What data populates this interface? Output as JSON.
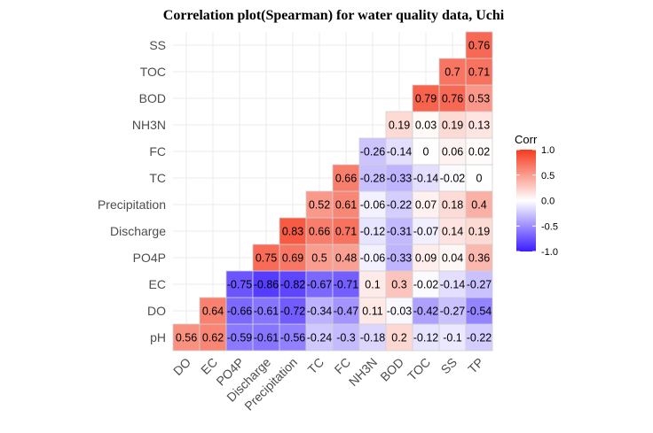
{
  "chart_data": {
    "type": "heatmap",
    "title": "Correlation plot(Spearman) for water quality data, Uchi",
    "x_variables": [
      "DO",
      "EC",
      "PO4P",
      "Discharge",
      "Precipitation",
      "TC",
      "FC",
      "NH3N",
      "BOD",
      "TOC",
      "SS",
      "TP"
    ],
    "y_variables": [
      "pH",
      "DO",
      "EC",
      "PO4P",
      "Discharge",
      "Precipitation",
      "TC",
      "FC",
      "NH3N",
      "BOD",
      "TOC",
      "SS"
    ],
    "cells": [
      {
        "x": "DO",
        "y": "pH",
        "value": 0.56,
        "label": "0.56"
      },
      {
        "x": "EC",
        "y": "pH",
        "value": 0.62,
        "label": "0.62"
      },
      {
        "x": "PO4P",
        "y": "pH",
        "value": -0.59,
        "label": "-0.59"
      },
      {
        "x": "Discharge",
        "y": "pH",
        "value": -0.61,
        "label": "-0.61"
      },
      {
        "x": "Precipitation",
        "y": "pH",
        "value": -0.56,
        "label": "-0.56"
      },
      {
        "x": "TC",
        "y": "pH",
        "value": -0.24,
        "label": "-0.24"
      },
      {
        "x": "FC",
        "y": "pH",
        "value": -0.3,
        "label": "-0.3"
      },
      {
        "x": "NH3N",
        "y": "pH",
        "value": -0.18,
        "label": "-0.18"
      },
      {
        "x": "BOD",
        "y": "pH",
        "value": 0.2,
        "label": "0.2"
      },
      {
        "x": "TOC",
        "y": "pH",
        "value": -0.12,
        "label": "-0.12"
      },
      {
        "x": "SS",
        "y": "pH",
        "value": -0.1,
        "label": "-0.1"
      },
      {
        "x": "TP",
        "y": "pH",
        "value": -0.22,
        "label": "-0.22"
      },
      {
        "x": "EC",
        "y": "DO",
        "value": 0.64,
        "label": "0.64"
      },
      {
        "x": "PO4P",
        "y": "DO",
        "value": -0.66,
        "label": "-0.66"
      },
      {
        "x": "Discharge",
        "y": "DO",
        "value": -0.61,
        "label": "-0.61"
      },
      {
        "x": "Precipitation",
        "y": "DO",
        "value": -0.72,
        "label": "-0.72"
      },
      {
        "x": "TC",
        "y": "DO",
        "value": -0.34,
        "label": "-0.34"
      },
      {
        "x": "FC",
        "y": "DO",
        "value": -0.47,
        "label": "-0.47"
      },
      {
        "x": "NH3N",
        "y": "DO",
        "value": 0.11,
        "label": "0.11"
      },
      {
        "x": "BOD",
        "y": "DO",
        "value": -0.03,
        "label": "-0.03"
      },
      {
        "x": "TOC",
        "y": "DO",
        "value": -0.42,
        "label": "-0.42"
      },
      {
        "x": "SS",
        "y": "DO",
        "value": -0.27,
        "label": "-0.27"
      },
      {
        "x": "TP",
        "y": "DO",
        "value": -0.54,
        "label": "-0.54"
      },
      {
        "x": "PO4P",
        "y": "EC",
        "value": -0.75,
        "label": "-0.75"
      },
      {
        "x": "Discharge",
        "y": "EC",
        "value": -0.86,
        "label": "-0.86"
      },
      {
        "x": "Precipitation",
        "y": "EC",
        "value": -0.82,
        "label": "-0.82"
      },
      {
        "x": "TC",
        "y": "EC",
        "value": -0.67,
        "label": "-0.67"
      },
      {
        "x": "FC",
        "y": "EC",
        "value": -0.71,
        "label": "-0.71"
      },
      {
        "x": "NH3N",
        "y": "EC",
        "value": 0.1,
        "label": "0.1"
      },
      {
        "x": "BOD",
        "y": "EC",
        "value": 0.3,
        "label": "0.3"
      },
      {
        "x": "TOC",
        "y": "EC",
        "value": -0.02,
        "label": "-0.02"
      },
      {
        "x": "SS",
        "y": "EC",
        "value": -0.14,
        "label": "-0.14"
      },
      {
        "x": "TP",
        "y": "EC",
        "value": -0.27,
        "label": "-0.27"
      },
      {
        "x": "Discharge",
        "y": "PO4P",
        "value": 0.75,
        "label": "0.75"
      },
      {
        "x": "Precipitation",
        "y": "PO4P",
        "value": 0.69,
        "label": "0.69"
      },
      {
        "x": "TC",
        "y": "PO4P",
        "value": 0.5,
        "label": "0.5"
      },
      {
        "x": "FC",
        "y": "PO4P",
        "value": 0.48,
        "label": "0.48"
      },
      {
        "x": "NH3N",
        "y": "PO4P",
        "value": -0.06,
        "label": "-0.06"
      },
      {
        "x": "BOD",
        "y": "PO4P",
        "value": -0.33,
        "label": "-0.33"
      },
      {
        "x": "TOC",
        "y": "PO4P",
        "value": 0.09,
        "label": "0.09"
      },
      {
        "x": "SS",
        "y": "PO4P",
        "value": 0.04,
        "label": "0.04"
      },
      {
        "x": "TP",
        "y": "PO4P",
        "value": 0.36,
        "label": "0.36"
      },
      {
        "x": "Precipitation",
        "y": "Discharge",
        "value": 0.83,
        "label": "0.83"
      },
      {
        "x": "TC",
        "y": "Discharge",
        "value": 0.66,
        "label": "0.66"
      },
      {
        "x": "FC",
        "y": "Discharge",
        "value": 0.71,
        "label": "0.71"
      },
      {
        "x": "NH3N",
        "y": "Discharge",
        "value": -0.12,
        "label": "-0.12"
      },
      {
        "x": "BOD",
        "y": "Discharge",
        "value": -0.31,
        "label": "-0.31"
      },
      {
        "x": "TOC",
        "y": "Discharge",
        "value": -0.07,
        "label": "-0.07"
      },
      {
        "x": "SS",
        "y": "Discharge",
        "value": 0.14,
        "label": "0.14"
      },
      {
        "x": "TP",
        "y": "Discharge",
        "value": 0.19,
        "label": "0.19"
      },
      {
        "x": "TC",
        "y": "Precipitation",
        "value": 0.52,
        "label": "0.52"
      },
      {
        "x": "FC",
        "y": "Precipitation",
        "value": 0.61,
        "label": "0.61"
      },
      {
        "x": "NH3N",
        "y": "Precipitation",
        "value": -0.06,
        "label": "-0.06"
      },
      {
        "x": "BOD",
        "y": "Precipitation",
        "value": -0.22,
        "label": "-0.22"
      },
      {
        "x": "TOC",
        "y": "Precipitation",
        "value": 0.07,
        "label": "0.07"
      },
      {
        "x": "SS",
        "y": "Precipitation",
        "value": 0.18,
        "label": "0.18"
      },
      {
        "x": "TP",
        "y": "Precipitation",
        "value": 0.4,
        "label": "0.4"
      },
      {
        "x": "FC",
        "y": "TC",
        "value": 0.66,
        "label": "0.66"
      },
      {
        "x": "NH3N",
        "y": "TC",
        "value": -0.28,
        "label": "-0.28"
      },
      {
        "x": "BOD",
        "y": "TC",
        "value": -0.33,
        "label": "-0.33"
      },
      {
        "x": "TOC",
        "y": "TC",
        "value": -0.14,
        "label": "-0.14"
      },
      {
        "x": "SS",
        "y": "TC",
        "value": -0.02,
        "label": "-0.02"
      },
      {
        "x": "TP",
        "y": "TC",
        "value": 0,
        "label": "0"
      },
      {
        "x": "NH3N",
        "y": "FC",
        "value": -0.26,
        "label": "-0.26"
      },
      {
        "x": "BOD",
        "y": "FC",
        "value": -0.14,
        "label": "-0.14"
      },
      {
        "x": "TOC",
        "y": "FC",
        "value": 0,
        "label": "0"
      },
      {
        "x": "SS",
        "y": "FC",
        "value": 0.06,
        "label": "0.06"
      },
      {
        "x": "TP",
        "y": "FC",
        "value": 0.02,
        "label": "0.02"
      },
      {
        "x": "BOD",
        "y": "NH3N",
        "value": 0.19,
        "label": "0.19"
      },
      {
        "x": "TOC",
        "y": "NH3N",
        "value": 0.03,
        "label": "0.03"
      },
      {
        "x": "SS",
        "y": "NH3N",
        "value": 0.19,
        "label": "0.19"
      },
      {
        "x": "TP",
        "y": "NH3N",
        "value": 0.13,
        "label": "0.13"
      },
      {
        "x": "TOC",
        "y": "BOD",
        "value": 0.79,
        "label": "0.79"
      },
      {
        "x": "SS",
        "y": "BOD",
        "value": 0.76,
        "label": "0.76"
      },
      {
        "x": "TP",
        "y": "BOD",
        "value": 0.53,
        "label": "0.53"
      },
      {
        "x": "SS",
        "y": "TOC",
        "value": 0.7,
        "label": "0.7"
      },
      {
        "x": "TP",
        "y": "TOC",
        "value": 0.71,
        "label": "0.71"
      },
      {
        "x": "TP",
        "y": "SS",
        "value": 0.76,
        "label": "0.76"
      }
    ],
    "color_scale": {
      "low_color": "#3b1cff",
      "mid_color": "#ffffff",
      "high_color": "#f53a1e",
      "range": [
        -1,
        1
      ]
    },
    "legend": {
      "title": "Corr",
      "ticks": [
        1.0,
        0.5,
        0.0,
        -0.5,
        -1.0
      ],
      "tick_labels": [
        "1.0",
        "0.5",
        "0.0",
        "-0.5",
        "-1.0"
      ],
      "placement": "right"
    },
    "grid": true
  }
}
